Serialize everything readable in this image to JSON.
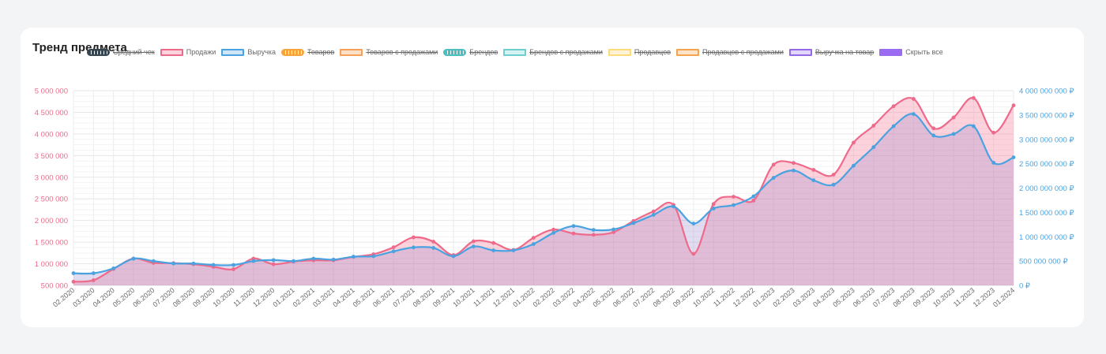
{
  "card": {
    "title": "Тренд предмета"
  },
  "legend": [
    {
      "label": "Средний чек",
      "color": "#36454f",
      "fill": "#36454f",
      "hidden": true,
      "pattern": true
    },
    {
      "label": "Продажи",
      "color": "#ef6a8a",
      "fill": "#fbd4de",
      "hidden": false
    },
    {
      "label": "Выручка",
      "color": "#4aa3e0",
      "fill": "#cfe6f7",
      "hidden": false
    },
    {
      "label": "Товаров",
      "color": "#f7a43d",
      "fill": "#f7a43d",
      "hidden": true,
      "pattern": true
    },
    {
      "label": "Товаров с продажами",
      "color": "#f6a05a",
      "fill": "#fde0c8",
      "hidden": true
    },
    {
      "label": "Брендов",
      "color": "#4bbfbf",
      "fill": "#4bbfbf",
      "hidden": true,
      "pattern": true
    },
    {
      "label": "Брендов с продажами",
      "color": "#6fcfcf",
      "fill": "#d6f2f2",
      "hidden": true
    },
    {
      "label": "Продавцов",
      "color": "#fbdb7c",
      "fill": "#fef3d6",
      "hidden": true
    },
    {
      "label": "Продавцов с продажами",
      "color": "#f4a44f",
      "fill": "#fde4c8",
      "hidden": true
    },
    {
      "label": "Выручка на товар",
      "color": "#9468e8",
      "fill": "#e3d6fb",
      "hidden": true
    },
    {
      "label": "Скрыть все",
      "color": "#9b6bf2",
      "fill": "#9b6bf2",
      "hidden": false
    }
  ],
  "chart_data": {
    "type": "area",
    "x": [
      "02.2020",
      "03.2020",
      "04.2020",
      "05.2020",
      "06.2020",
      "07.2020",
      "08.2020",
      "09.2020",
      "10.2020",
      "11.2020",
      "12.2020",
      "01.2021",
      "02.2021",
      "03.2021",
      "04.2021",
      "05.2021",
      "06.2021",
      "07.2021",
      "08.2021",
      "09.2021",
      "10.2021",
      "11.2021",
      "12.2021",
      "01.2022",
      "02.2022",
      "03.2022",
      "04.2022",
      "05.2022",
      "06.2022",
      "07.2022",
      "08.2022",
      "09.2022",
      "10.2022",
      "11.2022",
      "12.2022",
      "01.2023",
      "02.2023",
      "03.2023",
      "04.2023",
      "05.2023",
      "06.2023",
      "07.2023",
      "08.2023",
      "09.2023",
      "10.2023",
      "11.2023",
      "12.2023",
      "01.2024"
    ],
    "y_left": {
      "min": 500000,
      "max": 5000000,
      "ticks": [
        "500 000",
        "1 000 000",
        "1 500 000",
        "2 000 000",
        "2 500 000",
        "3 000 000",
        "3 500 000",
        "4 000 000",
        "4 500 000",
        "5 000 000"
      ],
      "color": "#ef6a8a"
    },
    "y_right": {
      "min": 0,
      "max": 4000000000,
      "ticks": [
        "0 ₽",
        "500 000 000 ₽",
        "1 000 000 000 ₽",
        "1 500 000 000 ₽",
        "2 000 000 000 ₽",
        "2 500 000 000 ₽",
        "3 000 000 000 ₽",
        "3 500 000 000 ₽",
        "4 000 000 000 ₽"
      ],
      "color": "#4aa3e0"
    },
    "grid": true,
    "legend_position": "top",
    "series": [
      {
        "name": "Продажи",
        "axis": "left",
        "color": "#ef6a8a",
        "fill": "rgba(246,140,165,0.38)",
        "values": [
          585000,
          620000,
          880000,
          1120000,
          1020000,
          1015000,
          990000,
          930000,
          875000,
          1120000,
          990000,
          1050000,
          1080000,
          1080000,
          1160000,
          1220000,
          1380000,
          1610000,
          1510000,
          1200000,
          1520000,
          1480000,
          1320000,
          1600000,
          1790000,
          1700000,
          1670000,
          1730000,
          1990000,
          2210000,
          2360000,
          1230000,
          2380000,
          2550000,
          2460000,
          3290000,
          3330000,
          3170000,
          3060000,
          3800000,
          4190000,
          4640000,
          4810000,
          4130000,
          4380000,
          4830000,
          4030000,
          4660000
        ]
      },
      {
        "name": "Выручка",
        "axis": "right",
        "color": "#4aa3e0",
        "fill": "rgba(150,130,200,0.28)",
        "values": [
          250000000,
          250000000,
          350000000,
          550000000,
          500000000,
          450000000,
          450000000,
          420000000,
          420000000,
          500000000,
          520000000,
          500000000,
          550000000,
          530000000,
          590000000,
          600000000,
          700000000,
          780000000,
          770000000,
          600000000,
          800000000,
          720000000,
          720000000,
          850000000,
          1080000000,
          1220000000,
          1140000000,
          1150000000,
          1280000000,
          1450000000,
          1620000000,
          1270000000,
          1580000000,
          1650000000,
          1830000000,
          2210000000,
          2360000000,
          2160000000,
          2070000000,
          2460000000,
          2840000000,
          3270000000,
          3520000000,
          3080000000,
          3110000000,
          3270000000,
          2520000000,
          2630000000
        ]
      }
    ]
  }
}
